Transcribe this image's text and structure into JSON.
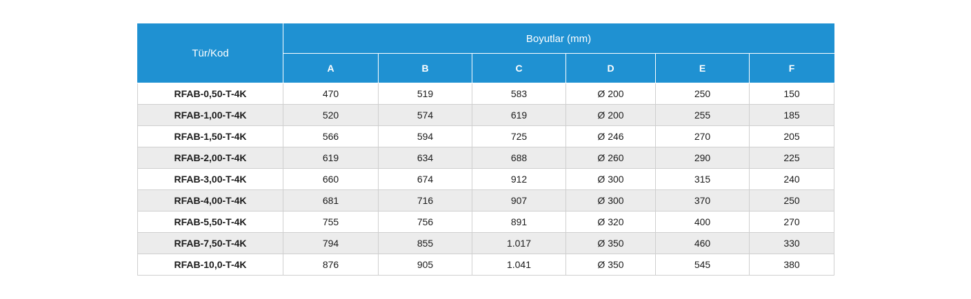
{
  "table": {
    "corner_header": "Tür/Kod",
    "group_header": "Boyutlar (mm)",
    "columns": [
      "A",
      "B",
      "C",
      "D",
      "E",
      "F"
    ],
    "rows": [
      {
        "code": "RFAB-0,50-T-4K",
        "values": [
          "470",
          "519",
          "583",
          "Ø 200",
          "250",
          "150"
        ]
      },
      {
        "code": "RFAB-1,00-T-4K",
        "values": [
          "520",
          "574",
          "619",
          "Ø 200",
          "255",
          "185"
        ]
      },
      {
        "code": "RFAB-1,50-T-4K",
        "values": [
          "566",
          "594",
          "725",
          "Ø 246",
          "270",
          "205"
        ]
      },
      {
        "code": "RFAB-2,00-T-4K",
        "values": [
          "619",
          "634",
          "688",
          "Ø 260",
          "290",
          "225"
        ]
      },
      {
        "code": "RFAB-3,00-T-4K",
        "values": [
          "660",
          "674",
          "912",
          "Ø 300",
          "315",
          "240"
        ]
      },
      {
        "code": "RFAB-4,00-T-4K",
        "values": [
          "681",
          "716",
          "907",
          "Ø 300",
          "370",
          "250"
        ]
      },
      {
        "code": "RFAB-5,50-T-4K",
        "values": [
          "755",
          "756",
          "891",
          "Ø 320",
          "400",
          "270"
        ]
      },
      {
        "code": "RFAB-7,50-T-4K",
        "values": [
          "794",
          "855",
          "1.017",
          "Ø 350",
          "460",
          "330"
        ]
      },
      {
        "code": "RFAB-10,0-T-4K",
        "values": [
          "876",
          "905",
          "1.041",
          "Ø 350",
          "545",
          "380"
        ]
      }
    ]
  },
  "colors": {
    "header_bg": "#1f91d2",
    "header_text": "#ffffff",
    "stripe": "#ececec",
    "border": "#cfcfcf"
  }
}
